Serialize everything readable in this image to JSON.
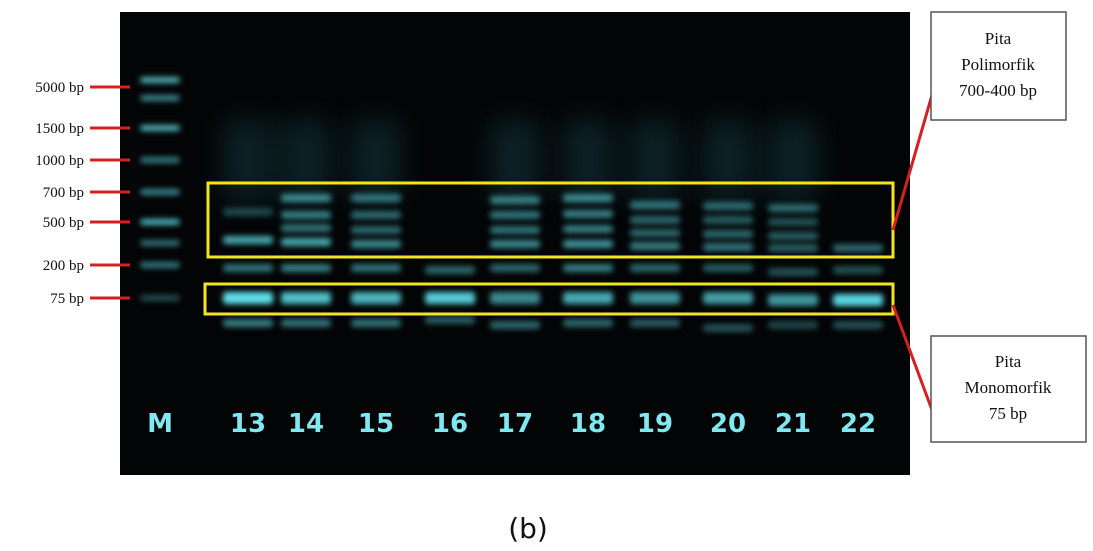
{
  "marker_labels": [
    "5000 bp",
    "1500 bp",
    "1000 bp",
    "700 bp",
    "500 bp",
    "200 bp",
    "75 bp"
  ],
  "lane_labels": [
    "M",
    "13",
    "14",
    "15",
    "16",
    "17",
    "18",
    "19",
    "20",
    "21",
    "22"
  ],
  "callouts": [
    {
      "lines": [
        "Pita",
        "Polimorfik",
        "700-400 bp"
      ]
    },
    {
      "lines": [
        "Pita",
        "Monomorfik",
        "75 bp"
      ]
    }
  ],
  "caption": "(b)"
}
